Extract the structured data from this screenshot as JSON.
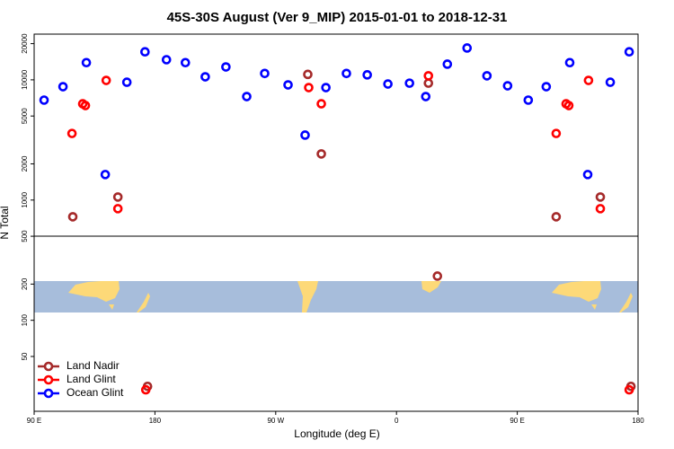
{
  "chart_data": {
    "type": "scatter",
    "title": "45S-30S August (Ver 9_MIP)   2015-01-01 to 2018-12-31",
    "x_label": "Longitude (deg E)",
    "y_label": "N Total",
    "xlim": [
      90,
      540
    ],
    "xticks": [
      {
        "value": 90,
        "label": "90 E"
      },
      180,
      {
        "value": 270,
        "label": "90 W"
      },
      {
        "value": 360,
        "label": "0"
      },
      {
        "value": 450,
        "label": "90 E"
      },
      {
        "value": 540,
        "label": "180"
      }
    ],
    "ylim": [
      17.5,
      24000
    ],
    "log_y": true,
    "yticks": [
      50,
      100,
      200,
      500,
      1000,
      2000,
      5000,
      10000,
      20000
    ],
    "legend": "lower left",
    "series": [
      {
        "name": "Land Nadir",
        "color": "#a52a2a",
        "x": [
          118.8,
          152.4,
          174.5,
          293.9,
          304.0,
          383.8,
          390.5,
          479.0,
          511.9,
          534.7
        ],
        "values": [
          726,
          1060,
          28.2,
          11100,
          2420,
          9380,
          233,
          726,
          1060,
          28.2
        ]
      },
      {
        "name": "Land Glint",
        "color": "#ff0000",
        "x": [
          118.2,
          126.2,
          128.2,
          143.7,
          152.4,
          173.2,
          294.6,
          304.0,
          383.8,
          479.0,
          486.4,
          488.4,
          503.1,
          511.9,
          533.4
        ],
        "values": [
          3580,
          6320,
          6110,
          9890,
          848,
          26.4,
          8620,
          6320,
          10800,
          3580,
          6320,
          6110,
          9890,
          848,
          26.4
        ]
      },
      {
        "name": "Ocean Glint",
        "color": "#0000ff",
        "x": [
          97.4,
          111.5,
          128.9,
          143.0,
          159.1,
          172.6,
          188.6,
          202.7,
          217.5,
          232.9,
          248.4,
          261.8,
          279.2,
          291.9,
          307.4,
          322.7,
          338.2,
          353.6,
          369.7,
          381.8,
          397.9,
          412.6,
          427.4,
          442.8,
          458.2,
          471.6,
          489.1,
          502.5,
          519.3,
          533.4
        ],
        "values": [
          6780,
          8770,
          13900,
          1630,
          9550,
          17100,
          14700,
          13900,
          10600,
          12800,
          7260,
          11300,
          9080,
          3470,
          8620,
          11300,
          11000,
          9230,
          9380,
          7260,
          13500,
          18400,
          10800,
          8920,
          6780,
          8770,
          13900,
          1630,
          9550,
          17100
        ]
      }
    ]
  }
}
